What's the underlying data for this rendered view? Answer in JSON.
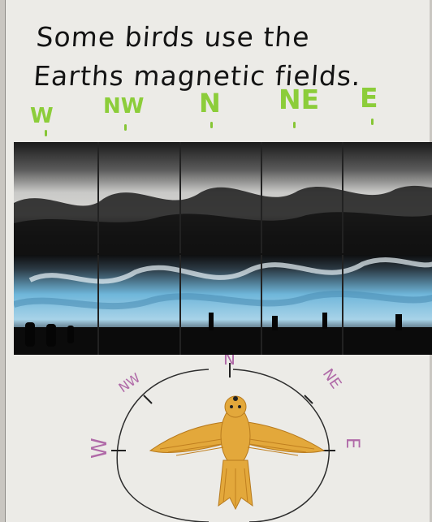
{
  "title": {
    "line1": "Some birds use the",
    "line2": "Earths magnetic fields."
  },
  "direction_labels": {
    "w": "W",
    "nw": "NW",
    "n": "N",
    "ne": "NE",
    "e": "E"
  },
  "compass": {
    "n": "N",
    "nw": "NW",
    "ne": "NE",
    "w": "W",
    "e": "E"
  },
  "colors": {
    "direction_green": "#8ccd3a",
    "compass_purple": "#b06aa8",
    "bird_yellow": "#e3a83b",
    "sky_blue": "#6fb6da",
    "charcoal": "#111111"
  }
}
